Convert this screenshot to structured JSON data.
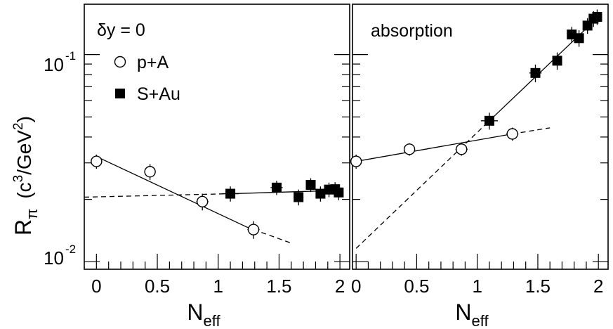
{
  "figure": {
    "ylabel_main": "R",
    "ylabel_sub": "π",
    "ylabel_units_pre": "(c",
    "ylabel_units_sup": "3",
    "ylabel_units_mid": "/GeV",
    "ylabel_units_sup2": "2",
    "ylabel_units_post": ")",
    "ytick_base": "10",
    "ytick_exp_top": "-1",
    "ytick_exp_bottom": "-2"
  },
  "chart_data": [
    {
      "type": "scatter",
      "panel": "left",
      "annotation": "δy = 0",
      "xlabel_main": "N",
      "xlabel_sub": "eff",
      "xlim": [
        -0.1,
        2.08
      ],
      "ylim": [
        0.0092,
        0.175
      ],
      "yscale": "log",
      "xticks": [
        "0",
        "0.5",
        "1",
        "1.5",
        "2"
      ],
      "xtick_values": [
        0,
        0.5,
        1,
        1.5,
        2
      ],
      "legend": [
        {
          "label": "p+A",
          "marker": "open-circle"
        },
        {
          "label": "S+Au",
          "marker": "filled-square"
        }
      ],
      "series": [
        {
          "name": "p+A",
          "marker": "open-circle",
          "x": [
            0,
            0.44,
            0.87,
            1.29
          ],
          "y": [
            0.0305,
            0.0272,
            0.0195,
            0.0143
          ],
          "yerr": [
            0.0024,
            0.0024,
            0.0018,
            0.0014
          ],
          "xerr": [
            0.04,
            0.04,
            0.05,
            0.05
          ]
        },
        {
          "name": "S+Au",
          "marker": "filled-square",
          "x": [
            1.1,
            1.48,
            1.66,
            1.76,
            1.84,
            1.91,
            1.96,
            1.99
          ],
          "y": [
            0.0213,
            0.0228,
            0.0205,
            0.0235,
            0.0213,
            0.0223,
            0.0224,
            0.0216
          ],
          "yerr": [
            0.0018,
            0.0018,
            0.0018,
            0.0018,
            0.0018,
            0.0018,
            0.0018,
            0.0018
          ],
          "xerr": [
            0.07,
            0.05,
            0.04,
            0.03,
            0.03,
            0.03,
            0.03,
            0.03
          ]
        }
      ],
      "lines": [
        {
          "style": "solid",
          "x": [
            0,
            1.29
          ],
          "y": [
            0.0322,
            0.0142
          ]
        },
        {
          "style": "solid",
          "x": [
            1.1,
            2.0
          ],
          "y": [
            0.0213,
            0.0221
          ]
        },
        {
          "style": "dashed",
          "x": [
            -0.1,
            1.1
          ],
          "y": [
            0.0205,
            0.0213
          ]
        },
        {
          "style": "dashed",
          "x": [
            1.29,
            1.6
          ],
          "y": [
            0.0143,
            0.0123
          ]
        }
      ]
    },
    {
      "type": "scatter",
      "panel": "right",
      "annotation": "absorption",
      "xlabel_main": "N",
      "xlabel_sub": "eff",
      "xlim": [
        -0.03,
        2.08
      ],
      "ylim": [
        0.0092,
        0.175
      ],
      "yscale": "log",
      "xticks": [
        "0",
        "0.5",
        "1",
        "1.5",
        "2"
      ],
      "xtick_values": [
        0,
        0.5,
        1,
        1.5,
        2
      ],
      "series": [
        {
          "name": "p+A",
          "marker": "open-circle",
          "x": [
            0,
            0.44,
            0.87,
            1.29
          ],
          "y": [
            0.0305,
            0.0349,
            0.0349,
            0.0414
          ],
          "yerr": [
            0.0024,
            0.0024,
            0.0024,
            0.003
          ],
          "xerr": [
            0.04,
            0.04,
            0.05,
            0.05
          ]
        },
        {
          "name": "S+Au",
          "marker": "filled-square",
          "x": [
            1.1,
            1.48,
            1.66,
            1.78,
            1.84,
            1.91,
            1.96,
            1.99
          ],
          "y": [
            0.0479,
            0.0815,
            0.0934,
            0.125,
            0.12,
            0.138,
            0.149,
            0.152
          ],
          "yerr": [
            0.0045,
            0.008,
            0.009,
            0.011,
            0.011,
            0.012,
            0.013,
            0.013
          ],
          "xerr": [
            0.07,
            0.05,
            0.04,
            0.03,
            0.03,
            0.03,
            0.03,
            0.03
          ]
        }
      ],
      "lines": [
        {
          "style": "solid",
          "x": [
            0,
            1.29
          ],
          "y": [
            0.0305,
            0.0414
          ]
        },
        {
          "style": "solid",
          "x": [
            1.1,
            2.0
          ],
          "y": [
            0.0479,
            0.152
          ]
        },
        {
          "style": "dashed",
          "x": [
            0,
            1.1
          ],
          "y": [
            0.0116,
            0.0479
          ]
        },
        {
          "style": "dashed",
          "x": [
            1.29,
            1.6
          ],
          "y": [
            0.0414,
            0.0443
          ]
        }
      ]
    }
  ]
}
